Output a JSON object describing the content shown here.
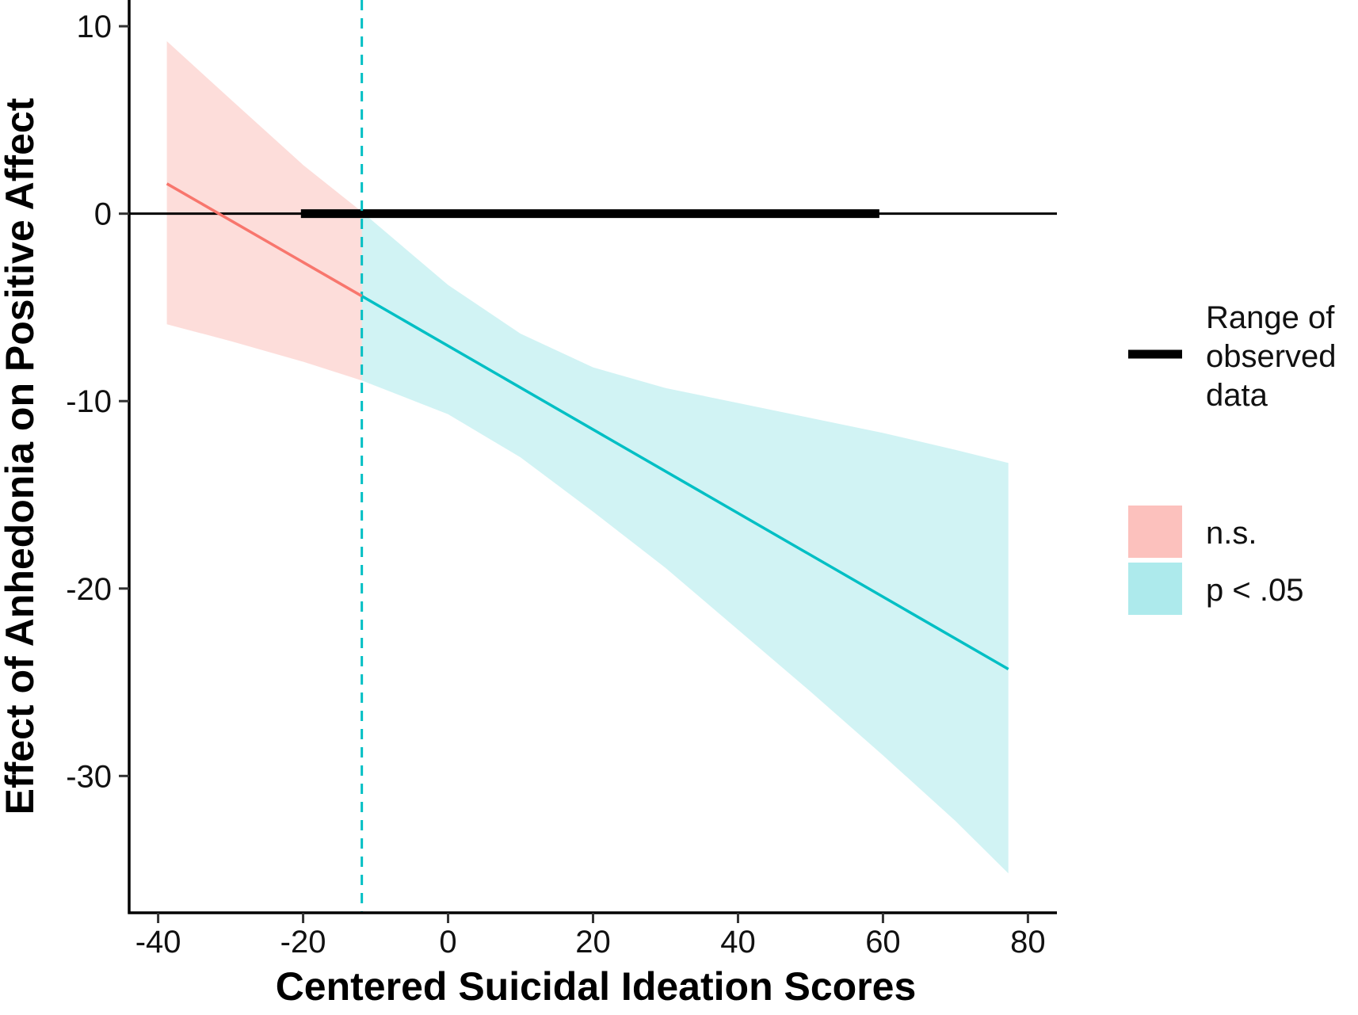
{
  "chart_data": {
    "type": "line",
    "title": "",
    "xlabel": "Centered Suicidal Ideation Scores",
    "ylabel": "Effect of Anhedonia on Positive Affect",
    "xlim": [
      -44,
      84
    ],
    "ylim": [
      -37.3,
      11.4
    ],
    "x_ticks": [
      -40,
      -20,
      0,
      20,
      40,
      60,
      80
    ],
    "x_tick_labels": [
      "-40",
      "-20",
      "0",
      "20",
      "40",
      "60",
      "80"
    ],
    "y_ticks": [
      10,
      0,
      -10,
      -20,
      -30
    ],
    "y_tick_labels": [
      "10",
      "0",
      "-10",
      "-20",
      "-30"
    ],
    "grid": false,
    "johnson_neyman_point": -11.9,
    "reference_line_y": 0,
    "observed_range": [
      -20.3,
      59.5
    ],
    "series": [
      {
        "name": "n.s.",
        "color": "#F8766D",
        "fill_color": "#F8766D",
        "x": [
          -38.8,
          -11.9
        ],
        "y": [
          1.6,
          -4.4
        ],
        "ci_x": [
          -38.8,
          -30,
          -20,
          -11.9
        ],
        "ci_lower": [
          -5.9,
          -6.8,
          -7.9,
          -8.9
        ],
        "ci_upper": [
          9.2,
          6.1,
          2.6,
          0.1
        ]
      },
      {
        "name": "p < .05",
        "color": "#00BFC4",
        "fill_color": "#00BFC4",
        "x": [
          -11.9,
          77.3
        ],
        "y": [
          -4.4,
          -24.3
        ],
        "ci_x": [
          -11.9,
          0,
          10,
          20,
          30,
          40,
          50,
          60,
          70,
          77.3
        ],
        "ci_lower": [
          -8.9,
          -10.7,
          -13.0,
          -15.9,
          -18.9,
          -22.2,
          -25.5,
          -28.9,
          -32.4,
          -35.2
        ],
        "ci_upper": [
          0.1,
          -3.8,
          -6.4,
          -8.2,
          -9.3,
          -10.1,
          -10.9,
          -11.7,
          -12.6,
          -13.3
        ]
      }
    ],
    "legend": {
      "placement": "right",
      "line_entry_label": "Range of observed data",
      "line_entry_lines": [
        "Range of",
        "observed",
        "data"
      ],
      "fill_entries": [
        {
          "label": "n.s.",
          "color": "#F8766D"
        },
        {
          "label": "p < .05",
          "color": "#00BFC4"
        }
      ]
    }
  }
}
